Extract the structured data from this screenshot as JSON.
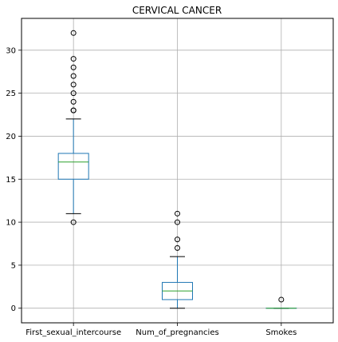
{
  "chart_data": {
    "type": "box",
    "title": "CERVICAL CANCER",
    "xlabel": "",
    "ylabel": "",
    "grid": true,
    "ylim": [
      -1.7,
      33.7
    ],
    "yticks": [
      0,
      5,
      10,
      15,
      20,
      25,
      30
    ],
    "colors": {
      "box": "#1f77b4",
      "median": "#2ca02c",
      "whisker": "#000000",
      "grid": "#b0b0b0"
    },
    "categories": [
      "First_sexual_intercourse",
      "Num_of_pregnancies",
      "Smokes"
    ],
    "boxes": [
      {
        "name": "First_sexual_intercourse",
        "whislo": 11,
        "q1": 15,
        "med": 17,
        "q3": 18,
        "whishi": 22,
        "fliers": [
          10,
          23,
          23,
          24,
          25,
          26,
          27,
          28,
          29,
          32
        ]
      },
      {
        "name": "Num_of_pregnancies",
        "whislo": 0,
        "q1": 1,
        "med": 2,
        "q3": 3,
        "whishi": 6,
        "fliers": [
          7,
          8,
          10,
          11
        ]
      },
      {
        "name": "Smokes",
        "whislo": 0,
        "q1": 0,
        "med": 0,
        "q3": 0,
        "whishi": 0,
        "fliers": [
          1
        ]
      }
    ]
  }
}
